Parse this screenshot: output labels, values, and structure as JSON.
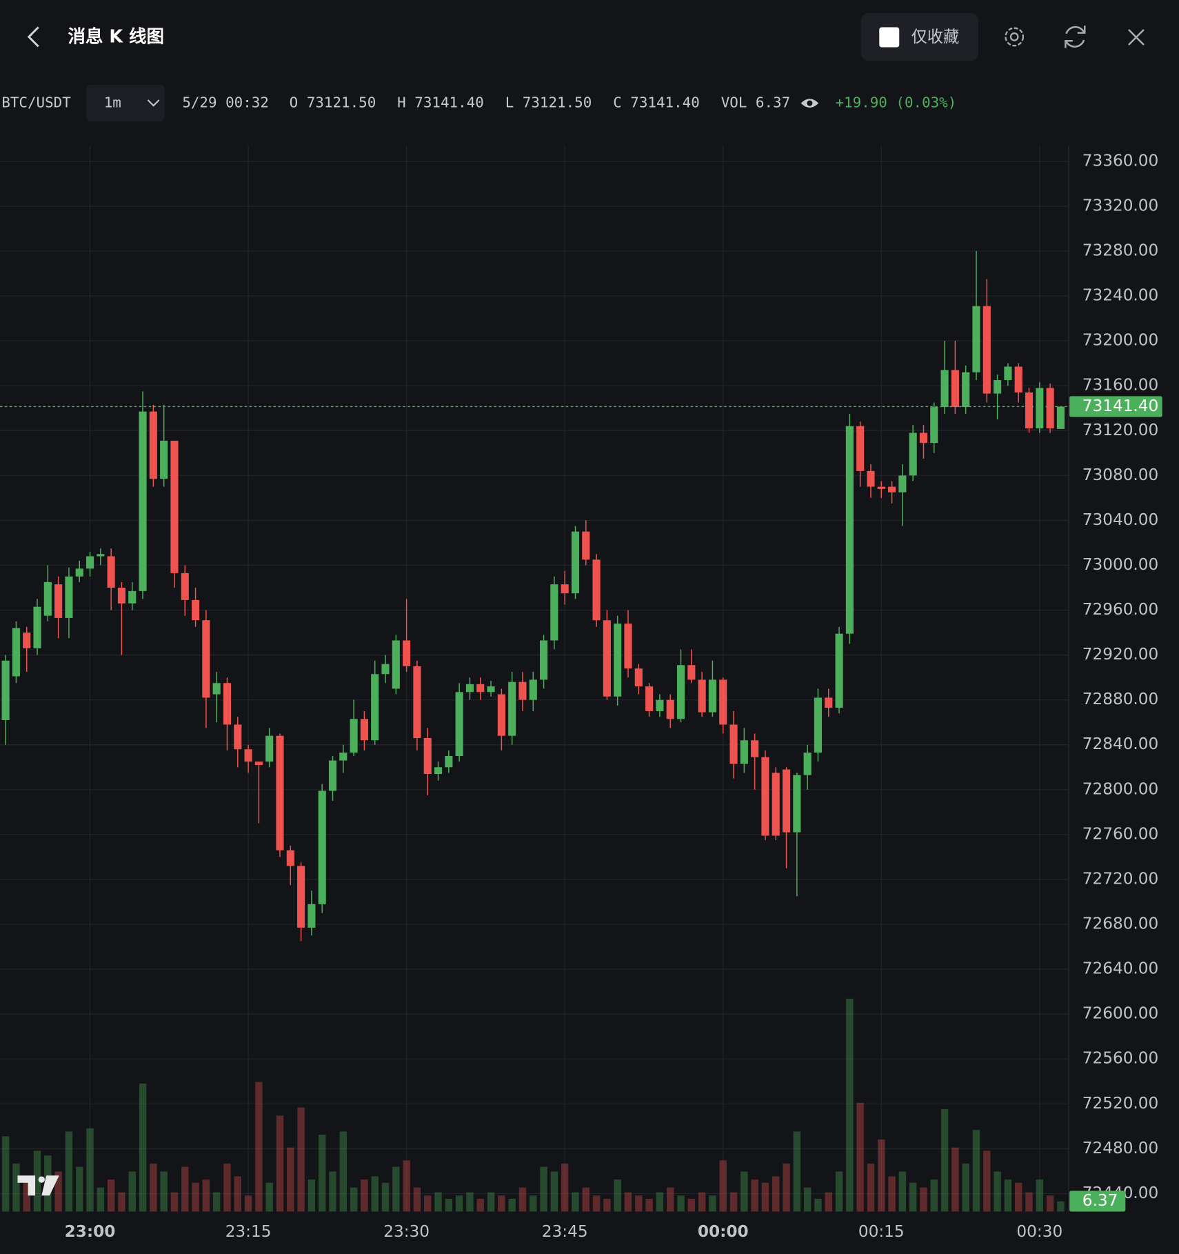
{
  "header": {
    "title": "消息 K 线图",
    "favorite_toggle": "仅收藏"
  },
  "info": {
    "symbol": "BTC/USDT",
    "interval": "1m",
    "time": "5/29 00:32",
    "open": "O 73121.50",
    "high": "H 73141.40",
    "low": "L 73121.50",
    "close": "C 73141.40",
    "volume": "VOL 6.37",
    "change": "+19.90 (0.03%)"
  },
  "chart_data": {
    "type": "candlestick",
    "categories": [
      null,
      null,
      null,
      null,
      null,
      null,
      null,
      null,
      "23:00",
      null,
      null,
      null,
      null,
      null,
      null,
      null,
      null,
      null,
      null,
      null,
      null,
      null,
      null,
      "23:15",
      null,
      null,
      null,
      null,
      null,
      null,
      null,
      null,
      null,
      null,
      null,
      null,
      null,
      null,
      "23:30",
      null,
      null,
      null,
      null,
      null,
      null,
      null,
      null,
      null,
      null,
      null,
      null,
      null,
      null,
      "23:45",
      null,
      null,
      null,
      null,
      null,
      null,
      null,
      null,
      null,
      null,
      null,
      null,
      null,
      null,
      "00:00",
      null,
      null,
      null,
      null,
      null,
      null,
      null,
      null,
      null,
      null,
      null,
      null,
      null,
      null,
      "00:15",
      null,
      null,
      null,
      null,
      null,
      null,
      null,
      null,
      null,
      null,
      null,
      null,
      null,
      null,
      "00:30",
      null,
      null
    ],
    "open": [
      72862,
      72901,
      72940,
      72926,
      72955,
      72983,
      72953,
      72990,
      72997,
      73008,
      73008,
      72980,
      72966,
      72977,
      73137,
      73077,
      73111,
      72993,
      72969,
      72951,
      72885,
      72895,
      72858,
      72836,
      72825,
      72825,
      72848,
      72746,
      72732,
      72677,
      72698,
      72799,
      72826,
      72833,
      72863,
      72844,
      72903,
      72890,
      72933,
      72910,
      72846,
      72814,
      72820,
      72830,
      72887,
      72894,
      72887,
      72885,
      72848,
      72896,
      72880,
      72898,
      72933,
      72983,
      72975,
      73030,
      73005,
      72951,
      72883,
      72948,
      72908,
      72892,
      72870,
      72880,
      72863,
      72911,
      72898,
      72869,
      72898,
      72858,
      72823,
      72844,
      72829,
      72815,
      72818,
      72762,
      72813,
      72833,
      72882,
      72873,
      72939,
      73124,
      73084,
      73070,
      73070,
      73065,
      73080,
      73118,
      73109,
      73141,
      73174,
      73141,
      73172,
      73231,
      73153,
      73165,
      73177,
      73154,
      73122,
      73158,
      73121.5
    ],
    "high": [
      72920,
      72950,
      72945,
      72970,
      73000,
      72990,
      72998,
      73004,
      73012,
      73015,
      73015,
      72985,
      72985,
      73155,
      73143,
      73143,
      73111,
      73000,
      72980,
      72960,
      72905,
      72900,
      72865,
      72840,
      72825,
      72855,
      72850,
      72750,
      72735,
      72710,
      72805,
      72830,
      72840,
      72880,
      72870,
      72915,
      72920,
      72938,
      72970,
      72915,
      72855,
      72825,
      72835,
      72895,
      72900,
      72900,
      72897,
      72890,
      72905,
      72905,
      72905,
      72938,
      72990,
      72995,
      73035,
      73040,
      73010,
      72960,
      72955,
      72960,
      72912,
      72895,
      72885,
      72885,
      72925,
      72925,
      72905,
      72915,
      72900,
      72870,
      72855,
      72850,
      72835,
      72820,
      72820,
      72815,
      72840,
      72890,
      72890,
      72945,
      73135,
      73128,
      73090,
      73075,
      73075,
      73090,
      73125,
      73125,
      73145,
      73200,
      73200,
      73178,
      73280,
      73255,
      73170,
      73180,
      73180,
      73158,
      73163,
      73162,
      73141.4
    ],
    "low": [
      72840,
      72895,
      72905,
      72920,
      72950,
      72935,
      72935,
      72985,
      72990,
      73000,
      72960,
      72920,
      72960,
      72970,
      73070,
      73070,
      72980,
      72955,
      72945,
      72855,
      72860,
      72835,
      72820,
      72815,
      72770,
      72820,
      72740,
      72715,
      72665,
      72670,
      72690,
      72790,
      72815,
      72830,
      72835,
      72840,
      72895,
      72885,
      72905,
      72835,
      72795,
      72808,
      72815,
      72825,
      72880,
      72880,
      72883,
      72835,
      72840,
      72870,
      72870,
      72890,
      72925,
      72965,
      72970,
      73000,
      72945,
      72880,
      72875,
      72900,
      72885,
      72865,
      72865,
      72855,
      72860,
      72895,
      72865,
      72865,
      72850,
      72810,
      72815,
      72800,
      72755,
      72755,
      72730,
      72705,
      72800,
      72825,
      72865,
      72868,
      72930,
      73070,
      73060,
      73060,
      73055,
      73035,
      73075,
      73095,
      73100,
      73135,
      73135,
      73135,
      73165,
      73145,
      73130,
      73160,
      73145,
      73118,
      73118,
      73118,
      73121.5
    ],
    "close": [
      72915,
      72944,
      72926,
      72963,
      72985,
      72953,
      72990,
      72997,
      73008,
      73010,
      72980,
      72966,
      72977,
      73137,
      73077,
      73111,
      72993,
      72969,
      72951,
      72882,
      72895,
      72858,
      72836,
      72825,
      72822,
      72848,
      72746,
      72732,
      72677,
      72698,
      72799,
      72826,
      72833,
      72863,
      72844,
      72903,
      72912,
      72933,
      72910,
      72846,
      72814,
      72820,
      72830,
      72887,
      72894,
      72887,
      72892,
      72848,
      72896,
      72880,
      72898,
      72933,
      72983,
      72975,
      73030,
      73005,
      72951,
      72883,
      72948,
      72908,
      72892,
      72870,
      72880,
      72863,
      72911,
      72898,
      72869,
      72898,
      72858,
      72823,
      72844,
      72829,
      72759,
      72759,
      72762,
      72813,
      72833,
      72882,
      72873,
      72939,
      73124,
      73084,
      73070,
      73068,
      73065,
      73080,
      73118,
      73109,
      73141,
      73174,
      73141,
      73172,
      73231,
      73153,
      73165,
      73177,
      73154,
      73122,
      73158,
      73122,
      73141.4
    ],
    "volume": [
      47,
      30,
      20,
      38,
      35,
      25,
      50,
      28,
      52,
      15,
      20,
      12,
      25,
      80,
      30,
      25,
      12,
      28,
      18,
      20,
      12,
      30,
      22,
      10,
      81,
      18,
      60,
      40,
      65,
      20,
      48,
      25,
      50,
      15,
      20,
      22,
      18,
      28,
      32,
      15,
      10,
      12,
      8,
      10,
      12,
      8,
      12,
      10,
      8,
      15,
      10,
      28,
      25,
      30,
      12,
      15,
      10,
      8,
      20,
      12,
      10,
      8,
      12,
      15,
      10,
      8,
      12,
      10,
      32,
      12,
      25,
      20,
      18,
      22,
      30,
      50,
      15,
      8,
      12,
      25,
      133,
      68,
      30,
      45,
      22,
      25,
      18,
      15,
      20,
      64,
      40,
      30,
      51,
      38,
      25,
      20,
      18,
      12,
      20,
      10,
      6.37
    ],
    "volume_lim": [
      0,
      666
    ],
    "last_close_label": "73141.40",
    "up_color": "#4caf5c",
    "down_color": "#ef5350",
    "ylim": [
      72424,
      73374
    ],
    "yticks": [
      {
        "value": 72440,
        "label": "72440.00"
      },
      {
        "value": 72480,
        "label": "72480.00"
      },
      {
        "value": 72520,
        "label": "72520.00"
      },
      {
        "value": 72560,
        "label": "72560.00"
      },
      {
        "value": 72600,
        "label": "72600.00"
      },
      {
        "value": 72640,
        "label": "72640.00"
      },
      {
        "value": 72680,
        "label": "72680.00"
      },
      {
        "value": 72720,
        "label": "72720.00"
      },
      {
        "value": 72760,
        "label": "72760.00"
      },
      {
        "value": 72800,
        "label": "72800.00"
      },
      {
        "value": 72840,
        "label": "72840.00"
      },
      {
        "value": 72880,
        "label": "72880.00"
      },
      {
        "value": 72920,
        "label": "72920.00"
      },
      {
        "value": 72960,
        "label": "72960.00"
      },
      {
        "value": 73000,
        "label": "73000.00"
      },
      {
        "value": 73040,
        "label": "73040.00"
      },
      {
        "value": 73080,
        "label": "73080.00"
      },
      {
        "value": 73120,
        "label": "73120.00"
      },
      {
        "value": 73160,
        "label": "73160.00"
      },
      {
        "value": 73200,
        "label": "73200.00"
      },
      {
        "value": 73240,
        "label": "73240.00"
      },
      {
        "value": 73280,
        "label": "73280.00"
      },
      {
        "value": 73320,
        "label": "73320.00"
      },
      {
        "value": 73360,
        "label": "73360.00"
      }
    ],
    "grid": true
  }
}
